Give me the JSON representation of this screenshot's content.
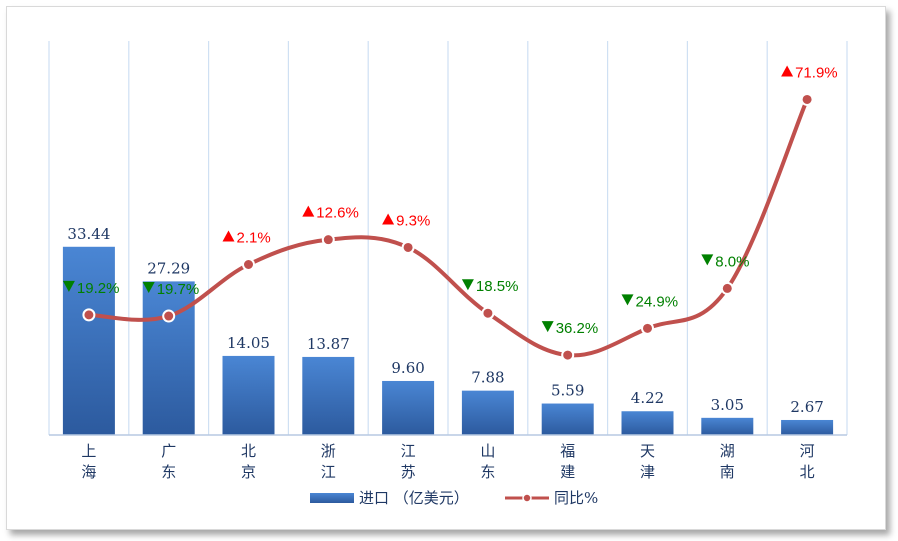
{
  "chart_data": {
    "type": "bar+line",
    "categories": [
      "上\n海",
      "广\n东",
      "北\n京",
      "浙\n江",
      "江\n苏",
      "山\n东",
      "福\n建",
      "天\n津",
      "湖\n南",
      "河\n北"
    ],
    "series": [
      {
        "name": "进口 (亿美元)",
        "type": "bar",
        "values": [
          33.44,
          27.29,
          14.05,
          13.87,
          9.6,
          7.88,
          5.59,
          4.22,
          3.05,
          2.67
        ],
        "labels": [
          "33.44",
          "27.29",
          "14.05",
          "13.87",
          "9.60",
          "7.88",
          "5.59",
          "4.22",
          "3.05",
          "2.67"
        ],
        "color": "#3a6fb8"
      },
      {
        "name": "同比%",
        "type": "line",
        "values": [
          -19.2,
          -19.7,
          2.1,
          12.6,
          9.3,
          -18.5,
          -36.2,
          -24.9,
          -8.0,
          71.9
        ],
        "labels": [
          "19.2%",
          "19.7%",
          "2.1%",
          "12.6%",
          "9.3%",
          "18.5%",
          "36.2%",
          "24.9%",
          "8.0%",
          "71.9%"
        ],
        "color": "#c0504d",
        "up_color": "#ff0000",
        "down_color": "#008000"
      }
    ],
    "bar_ylim": [
      0,
      70
    ],
    "line_ylim": [
      -70,
      100
    ],
    "grid": "vertical",
    "legend": "bottom"
  },
  "legend": {
    "bar_label": "进口 （亿美元）",
    "line_label": "同比%"
  }
}
